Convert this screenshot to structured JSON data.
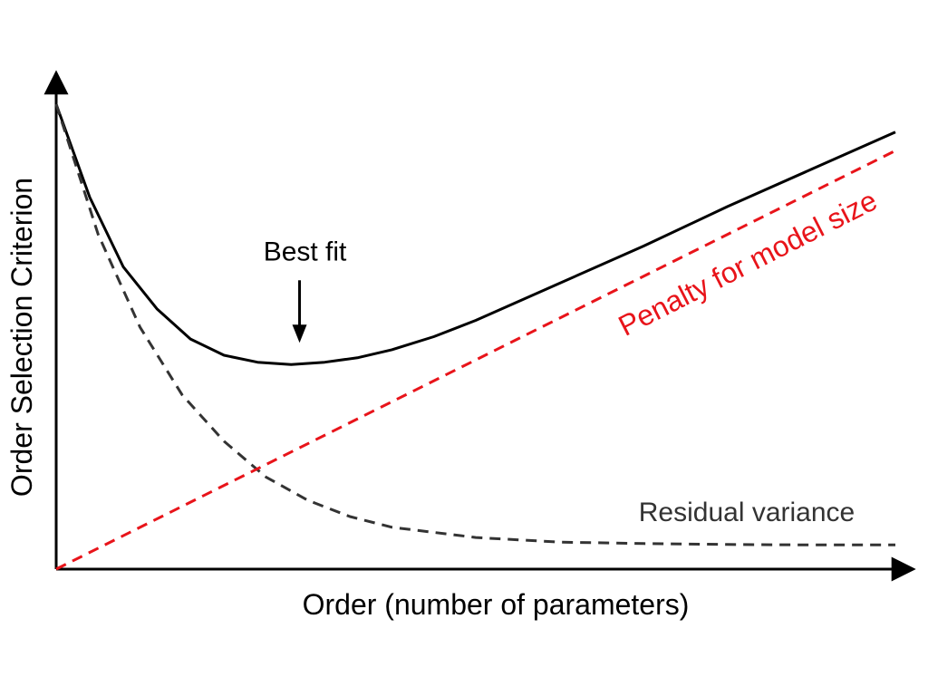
{
  "chart_data": {
    "type": "line",
    "title": "",
    "xlabel": "Order (number of parameters)",
    "ylabel": "Order Selection Criterion",
    "xlim": [
      0,
      10
    ],
    "ylim": [
      0,
      10
    ],
    "grid": false,
    "legend": "none",
    "series": [
      {
        "name": "",
        "style": "solid",
        "color": "#000000",
        "x": [
          0,
          0.4,
          0.8,
          1.2,
          1.6,
          2.0,
          2.4,
          2.8,
          3.2,
          3.6,
          4.0,
          4.5,
          5.0,
          6.0,
          7.0,
          8.0,
          9.0,
          10.0
        ],
        "y": [
          10,
          8.0,
          6.5,
          5.6,
          4.95,
          4.6,
          4.45,
          4.4,
          4.45,
          4.55,
          4.72,
          5.0,
          5.35,
          6.15,
          6.95,
          7.8,
          8.6,
          9.4
        ]
      },
      {
        "name": "Residual variance",
        "style": "dashed",
        "color": "#333333",
        "x": [
          0,
          0.5,
          1.0,
          1.5,
          2.0,
          2.5,
          3.0,
          3.5,
          4.0,
          5.0,
          6.0,
          7.0,
          8.0,
          9.0,
          10.0
        ],
        "y": [
          10,
          7.2,
          5.2,
          3.75,
          2.75,
          1.98,
          1.48,
          1.13,
          0.9,
          0.68,
          0.58,
          0.55,
          0.53,
          0.52,
          0.52
        ]
      },
      {
        "name": "Penalty for model size",
        "style": "dashed",
        "color": "#e8141a",
        "x": [
          0,
          10
        ],
        "y": [
          0,
          9.0
        ]
      }
    ],
    "annotations": [
      {
        "text": "Best fit",
        "arrow": "down",
        "x": 2.9,
        "y": 4.4
      }
    ]
  }
}
